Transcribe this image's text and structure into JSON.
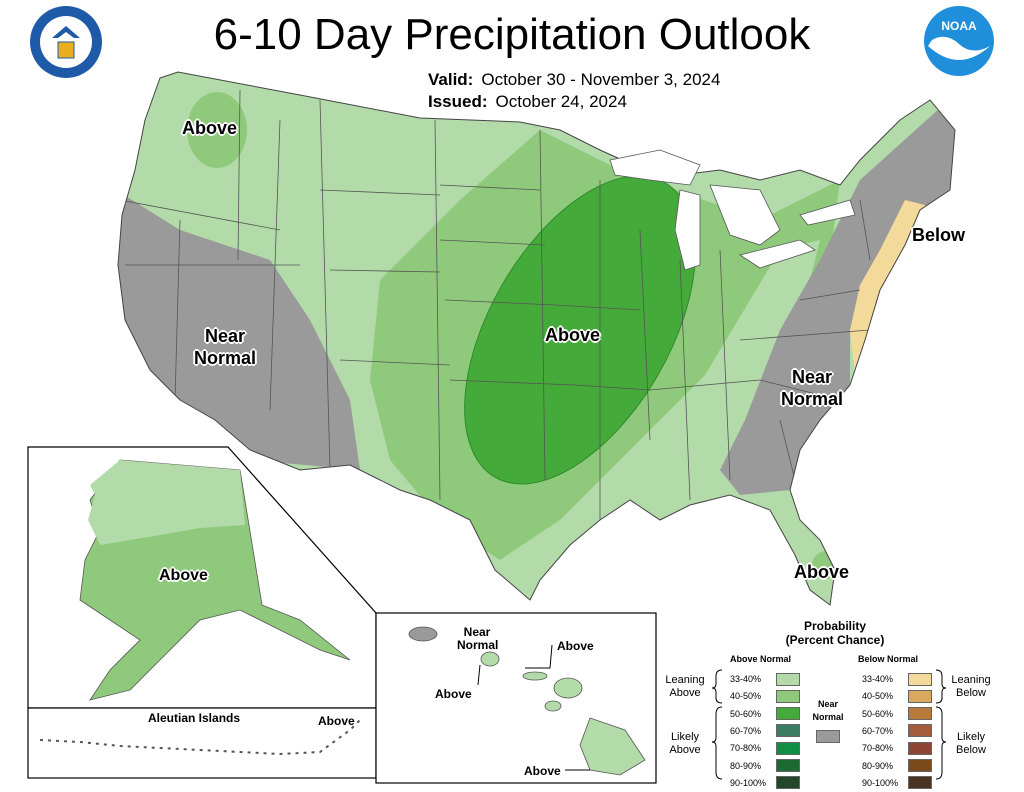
{
  "header": {
    "title": "6-10 Day Precipitation Outlook",
    "valid_label": "Valid:",
    "valid_value": "October 30 - November 3, 2024",
    "issued_label": "Issued:",
    "issued_value": "October 24, 2024"
  },
  "logos": {
    "left": "department-of-commerce-seal",
    "right": "noaa-logo",
    "right_text": "NOAA"
  },
  "map_labels": {
    "northwest": "Above",
    "west": "Near Normal",
    "central": "Above",
    "northeast": "Below",
    "southeast": "Near Normal",
    "florida": "Above",
    "alaska": "Above",
    "aleutian_title": "Aleutian Islands",
    "aleutian": "Above",
    "hawaii_near_normal": "Near Normal",
    "hawaii_above_1": "Above",
    "hawaii_above_2": "Above",
    "hawaii_above_3": "Above"
  },
  "legend": {
    "title_line1": "Probability",
    "title_line2": "(Percent Chance)",
    "above_header": "Above Normal",
    "below_header": "Below Normal",
    "near_normal": "Near Normal",
    "leaning_above": "Leaning Above",
    "likely_above": "Likely Above",
    "leaning_below": "Leaning Below",
    "likely_below": "Likely Below",
    "above_bins": [
      {
        "label": "33-40%",
        "color": "#b3dba9"
      },
      {
        "label": "40-50%",
        "color": "#8fca7c"
      },
      {
        "label": "50-60%",
        "color": "#44ab3a"
      },
      {
        "label": "60-70%",
        "color": "#3a7d62"
      },
      {
        "label": "70-80%",
        "color": "#0f8f45"
      },
      {
        "label": "80-90%",
        "color": "#1d6b33"
      },
      {
        "label": "90-100%",
        "color": "#24472b"
      }
    ],
    "below_bins": [
      {
        "label": "33-40%",
        "color": "#f3d99a"
      },
      {
        "label": "40-50%",
        "color": "#dba95e"
      },
      {
        "label": "50-60%",
        "color": "#b77a3a"
      },
      {
        "label": "60-70%",
        "color": "#a35d3c"
      },
      {
        "label": "70-80%",
        "color": "#8c4533"
      },
      {
        "label": "80-90%",
        "color": "#7a4a1b"
      },
      {
        "label": "90-100%",
        "color": "#4a3320"
      }
    ],
    "near_color": "#9a9a9a"
  },
  "colors": {
    "light_green": "#b3dba9",
    "medium_green": "#8fca7c",
    "dark_green": "#44ab3a",
    "gray": "#9a9a9a",
    "tan": "#f3d99a"
  }
}
